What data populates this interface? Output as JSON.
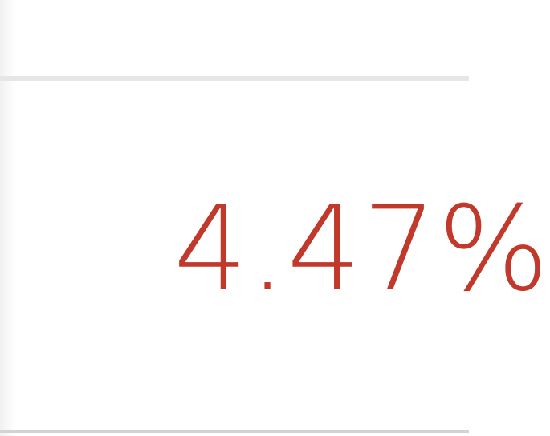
{
  "metric": {
    "value": "4.47%",
    "color": "#c0392b"
  },
  "colors": {
    "divider": "#e6e6e6",
    "background": "#ffffff"
  }
}
